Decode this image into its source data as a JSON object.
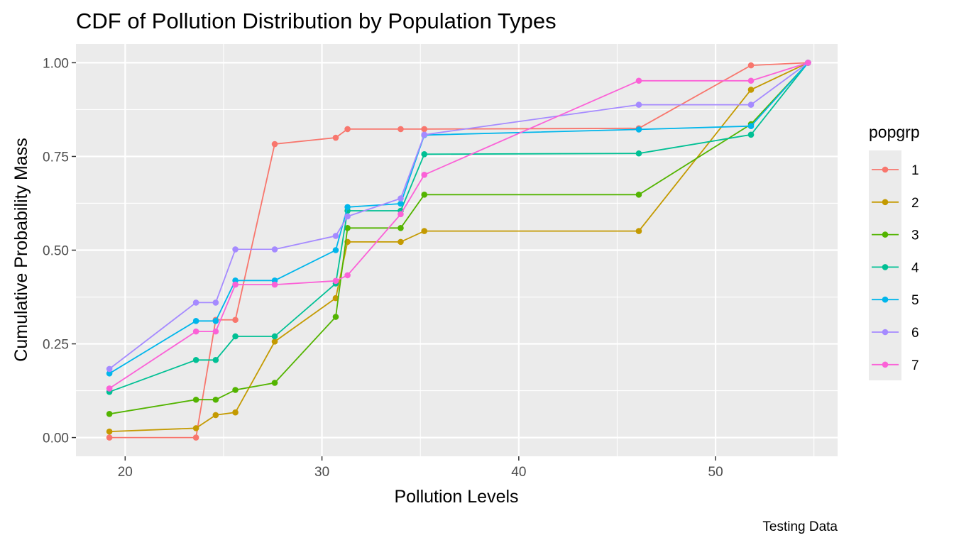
{
  "chart_data": {
    "type": "line",
    "title": "CDF of Pollution Distribution by Population Types",
    "xlabel": "Pollution Levels",
    "ylabel": "Cumulative Probability Mass",
    "caption": "Testing Data",
    "xlim": [
      17.5,
      56.2
    ],
    "ylim": [
      -0.05,
      1.05
    ],
    "x_ticks": [
      20,
      30,
      40,
      50
    ],
    "x_tick_labels": [
      "20",
      "30",
      "40",
      "50"
    ],
    "y_ticks": [
      0,
      0.25,
      0.5,
      0.75,
      1
    ],
    "y_tick_labels": [
      "0.00",
      "0.25",
      "0.50",
      "0.75",
      "1.00"
    ],
    "grid": true,
    "legend": {
      "title": "popgrp",
      "placement": "right"
    },
    "x": [
      19.2,
      23.6,
      24.6,
      25.6,
      27.6,
      30.7,
      31.3,
      34.0,
      35.2,
      46.1,
      51.8,
      54.7
    ],
    "series": [
      {
        "name": "1",
        "color": "#F8766D",
        "values": [
          0.0,
          0.0,
          0.314,
          0.314,
          0.783,
          0.8,
          0.823,
          0.823,
          0.823,
          0.825,
          0.993,
          1.0
        ]
      },
      {
        "name": "2",
        "color": "#C49A00",
        "values": [
          0.016,
          0.025,
          0.06,
          0.067,
          0.256,
          0.372,
          0.522,
          0.522,
          0.551,
          0.551,
          0.928,
          1.0
        ]
      },
      {
        "name": "3",
        "color": "#53B400",
        "values": [
          0.063,
          0.101,
          0.101,
          0.127,
          0.146,
          0.322,
          0.559,
          0.559,
          0.648,
          0.648,
          0.836,
          1.0
        ]
      },
      {
        "name": "4",
        "color": "#00C094",
        "values": [
          0.122,
          0.207,
          0.207,
          0.27,
          0.27,
          0.411,
          0.605,
          0.605,
          0.756,
          0.758,
          0.808,
          1.0
        ]
      },
      {
        "name": "5",
        "color": "#00B6EB",
        "values": [
          0.171,
          0.311,
          0.311,
          0.419,
          0.419,
          0.5,
          0.615,
          0.624,
          0.807,
          0.822,
          0.831,
          1.0
        ]
      },
      {
        "name": "6",
        "color": "#A58AFF",
        "values": [
          0.183,
          0.36,
          0.36,
          0.502,
          0.502,
          0.538,
          0.59,
          0.638,
          0.808,
          0.888,
          0.888,
          1.0
        ]
      },
      {
        "name": "7",
        "color": "#FB61D7",
        "values": [
          0.131,
          0.283,
          0.283,
          0.408,
          0.408,
          0.418,
          0.433,
          0.596,
          0.701,
          0.952,
          0.952,
          1.0
        ]
      }
    ]
  }
}
